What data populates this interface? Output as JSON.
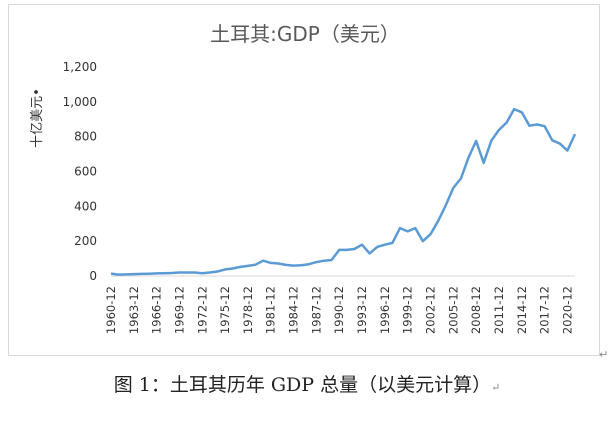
{
  "chart_data": {
    "type": "line",
    "title": "土耳其:GDP（美元）",
    "ylabel": "十亿美元•",
    "xlabel": "",
    "ylim": [
      0,
      1200
    ],
    "yticks": [
      0,
      200,
      400,
      600,
      800,
      1000,
      1200
    ],
    "ytick_labels": [
      "0",
      "200",
      "400",
      "600",
      "800",
      "1,000",
      "1,200"
    ],
    "xtick_labels": [
      "1960-12",
      "1963-12",
      "1966-12",
      "1969-12",
      "1972-12",
      "1975-12",
      "1978-12",
      "1981-12",
      "1984-12",
      "1987-12",
      "1990-12",
      "1993-12",
      "1996-12",
      "1999-12",
      "2002-12",
      "2005-12",
      "2008-12",
      "2011-12",
      "2014-12",
      "2017-12",
      "2020-12"
    ],
    "grid": false,
    "legend": "none",
    "line_color": "#5b9bd5",
    "series": [
      {
        "x": [
          1960,
          1961,
          1962,
          1963,
          1964,
          1965,
          1966,
          1967,
          1968,
          1969,
          1970,
          1971,
          1972,
          1973,
          1974,
          1975,
          1976,
          1977,
          1978,
          1979,
          1980,
          1981,
          1982,
          1983,
          1984,
          1985,
          1986,
          1987,
          1988,
          1989,
          1990,
          1991,
          1992,
          1993,
          1994,
          1995,
          1996,
          1997,
          1998,
          1999,
          2000,
          2001,
          2002,
          2003,
          2004,
          2005,
          2006,
          2007,
          2008,
          2009,
          2010,
          2011,
          2012,
          2013,
          2014,
          2015,
          2016,
          2017,
          2018,
          2019,
          2020,
          2021
        ],
        "values": [
          14,
          8,
          9,
          11,
          12,
          13,
          15,
          16,
          17,
          20,
          20,
          20,
          16,
          20,
          26,
          38,
          43,
          52,
          58,
          65,
          88,
          75,
          72,
          64,
          60,
          62,
          68,
          80,
          88,
          92,
          150,
          150,
          155,
          180,
          130,
          167,
          180,
          190,
          275,
          256,
          275,
          200,
          240,
          315,
          405,
          506,
          560,
          680,
          775,
          650,
          777,
          838,
          880,
          958,
          940,
          863,
          870,
          860,
          780,
          760,
          720,
          815
        ]
      }
    ]
  },
  "caption": {
    "text": "图 1：土耳其历年 GDP 总量（以美元计算）",
    "para_mark": "↵"
  }
}
